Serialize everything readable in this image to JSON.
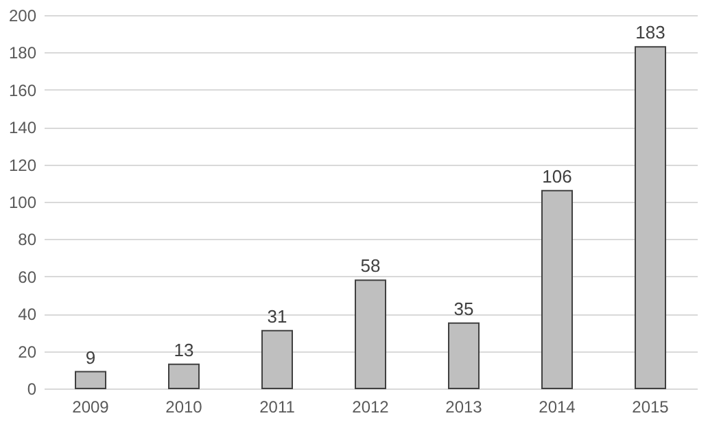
{
  "chart_data": {
    "type": "bar",
    "categories": [
      "2009",
      "2010",
      "2011",
      "2012",
      "2013",
      "2014",
      "2015"
    ],
    "values": [
      9,
      13,
      31,
      58,
      35,
      106,
      183
    ],
    "color": "#bfbfbf",
    "ylim": [
      0,
      200
    ],
    "yticks": [
      0,
      20,
      40,
      60,
      80,
      100,
      120,
      140,
      160,
      180,
      200
    ],
    "grid": "y",
    "data_labels": true
  }
}
